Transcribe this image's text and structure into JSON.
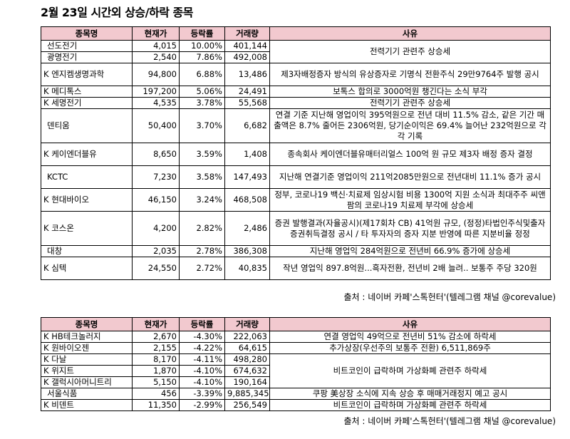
{
  "title": "2월 23일  시간외 상승/하락 종목",
  "headers": [
    "종목명",
    "현재가",
    "등락률",
    "거래량",
    "사유"
  ],
  "rise": {
    "rows": [
      {
        "name": "선도전기",
        "price": "4,015",
        "rate": "10.00%",
        "volume": "401,144"
      },
      {
        "name": "광명전기",
        "price": "2,540",
        "rate": "7.86%",
        "volume": "492,008"
      },
      {
        "name": "K 엔지켐생명과학",
        "price": "94,800",
        "rate": "6.88%",
        "volume": "13,486"
      },
      {
        "name": "K 메디톡스",
        "price": "197,200",
        "rate": "5.06%",
        "volume": "24,491"
      },
      {
        "name": "K 세명전기",
        "price": "4,535",
        "rate": "3.78%",
        "volume": "55,568"
      },
      {
        "name": "덴티움",
        "price": "50,400",
        "rate": "3.70%",
        "volume": "6,682"
      },
      {
        "name": "K 케이엔더블유",
        "price": "8,650",
        "rate": "3.59%",
        "volume": "1,408"
      },
      {
        "name": "KCTC",
        "price": "7,230",
        "rate": "3.58%",
        "volume": "147,493"
      },
      {
        "name": "K 현대바이오",
        "price": "46,150",
        "rate": "3.24%",
        "volume": "468,508"
      },
      {
        "name": "K 코스온",
        "price": "4,200",
        "rate": "2.82%",
        "volume": "2,486"
      },
      {
        "name": "대창",
        "price": "2,035",
        "rate": "2.78%",
        "volume": "386,308"
      },
      {
        "name": "K 심텍",
        "price": "24,550",
        "rate": "2.72%",
        "volume": "40,835"
      }
    ],
    "reasons": [
      "전력기기 관련주 상승세",
      "제3자배정증자 방식의 유상증자로 기명식 전환주식 29만9764주 발행 공시",
      "보톡스 합의로 3000억원 챙긴다는 소식 부각",
      "전력기기 관련주 상승세",
      "연결 기준 지난해 영업이익 395억원으로 전년 대비 11.5% 감소, 같은 기간 매출액은 8.7% 줄어든 2306억원, 당기순이익은 69.4% 늘어난 232억원으로 각각 기록",
      "종속회사 케이엔더블유매터리얼스 100억 원 규모 제3자 배정 증자 결정",
      "지난해 연결기준 영업이익 211억2085만원으로 전년대비 11.1% 증가 공시",
      "정부, 코로나19 백신·치료제 임상시험 비용 1300억 지원 소식과 최대주주 씨앤팜의 코로나19 치료제 부각에 상승세",
      "증권 발행결과(자율공시)(제17회차 CB) 41억원 규모, (정정)타법인주식및출자증권취득결정 공시 / 타 투자자의 증자 지분 반영에 따른 지분비율 정정",
      "지난해 영업익 284억원으로 전년비 66.9% 증가에 상승세",
      "작년 영업익 897.8억원...흑자전환, 전년비 2배 늘려.. 보통주 주당 320원"
    ]
  },
  "fall": {
    "rows": [
      {
        "name": "K HB테크놀러지",
        "price": "2,670",
        "rate": "-4.30%",
        "volume": "222,063"
      },
      {
        "name": "K 원바이오젠",
        "price": "2,155",
        "rate": "-4.22%",
        "volume": "64,615"
      },
      {
        "name": "K 다날",
        "price": "8,170",
        "rate": "-4.11%",
        "volume": "498,280"
      },
      {
        "name": "K 위지트",
        "price": "1,870",
        "rate": "-4.10%",
        "volume": "674,632"
      },
      {
        "name": "K 갤럭시아머니트리",
        "price": "5,150",
        "rate": "-4.10%",
        "volume": "190,164"
      },
      {
        "name": "서울식품",
        "price": "456",
        "rate": "-3.39%",
        "volume": "9,885,345"
      },
      {
        "name": "K 비덴트",
        "price": "11,350",
        "rate": "-2.99%",
        "volume": "256,549"
      }
    ],
    "reasons": [
      "연결 영업익 49억으로 전년비 51% 감소에 하락세",
      "추가상장(우선주의 보통주 전환) 6,511,869주",
      "비트코인이 급락하며 가상화폐 관련주 하락세",
      "쿠팡 美상장 소식에 지속 상승 후 매매거래정지 예고 공시",
      "비트코인이 급락하며 가상화폐 관련주 하락세"
    ]
  },
  "source": "출처 : 네이버 카페'스톡헌터'(텔레그램 채널 @corevalue)"
}
